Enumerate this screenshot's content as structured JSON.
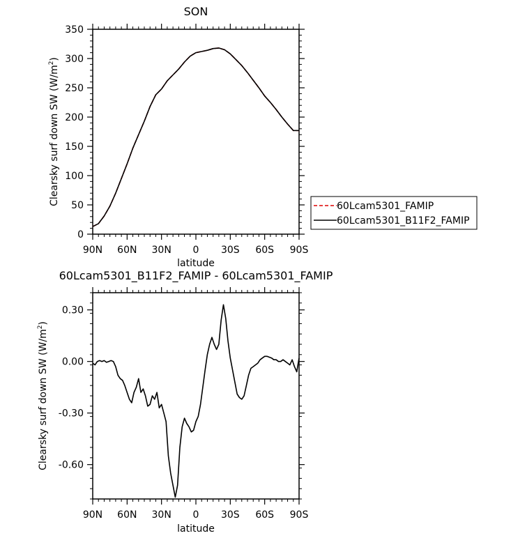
{
  "chart_data": [
    {
      "type": "line",
      "title": "SON",
      "xlabel": "latitude",
      "ylabel_prefix": "Clearsky surf down SW (W/m",
      "ylabel_sup": "2",
      "ylabel_suffix": ")",
      "xlim": [
        -90,
        90
      ],
      "ylim": [
        0,
        350
      ],
      "x_ticks": [
        -90,
        -60,
        -30,
        0,
        30,
        60,
        90
      ],
      "x_tick_labels": [
        "90N",
        "60N",
        "30N",
        "0",
        "30S",
        "60S",
        "90S"
      ],
      "y_ticks": [
        0,
        50,
        100,
        150,
        200,
        250,
        300,
        350
      ],
      "y_tick_labels": [
        "0",
        "50",
        "100",
        "150",
        "200",
        "250",
        "300",
        "350"
      ],
      "legend_position": "right",
      "series": [
        {
          "name": "60Lcam5301_FAMIP",
          "color": "#dd0000",
          "dash": "dashed",
          "x": [
            -90,
            -85,
            -80,
            -75,
            -70,
            -65,
            -60,
            -55,
            -50,
            -45,
            -40,
            -35,
            -30,
            -25,
            -20,
            -15,
            -10,
            -5,
            0,
            5,
            10,
            15,
            20,
            25,
            30,
            35,
            40,
            45,
            50,
            55,
            60,
            65,
            70,
            75,
            80,
            85,
            90
          ],
          "y": [
            13,
            18,
            31,
            48,
            70,
            95,
            120,
            147,
            170,
            193,
            218,
            238,
            248,
            262,
            272,
            282,
            294,
            304,
            310,
            312,
            314,
            317,
            318,
            315,
            308,
            298,
            288,
            276,
            263,
            250,
            236,
            225,
            213,
            200,
            188,
            177,
            177
          ]
        },
        {
          "name": "60Lcam5301_B11F2_FAMIP",
          "color": "#000000",
          "dash": "solid",
          "x": [
            -90,
            -85,
            -80,
            -75,
            -70,
            -65,
            -60,
            -55,
            -50,
            -45,
            -40,
            -35,
            -30,
            -25,
            -20,
            -15,
            -10,
            -5,
            0,
            5,
            10,
            15,
            20,
            25,
            30,
            35,
            40,
            45,
            50,
            55,
            60,
            65,
            70,
            75,
            80,
            85,
            90
          ],
          "y": [
            13,
            18,
            31,
            48,
            70,
            95,
            120,
            147,
            170,
            193,
            218,
            238,
            248,
            262,
            272,
            282,
            294,
            304,
            310,
            312,
            314,
            317,
            318,
            315,
            308,
            298,
            288,
            276,
            263,
            250,
            236,
            225,
            213,
            200,
            188,
            177,
            177
          ]
        }
      ]
    },
    {
      "type": "line",
      "title": "60Lcam5301_B11F2_FAMIP - 60Lcam5301_FAMIP",
      "xlabel": "latitude",
      "ylabel_prefix": "Clearsky surf down SW (W/m",
      "ylabel_sup": "2",
      "ylabel_suffix": ")",
      "xlim": [
        -90,
        90
      ],
      "ylim": [
        -0.8,
        0.4
      ],
      "x_ticks": [
        -90,
        -60,
        -30,
        0,
        30,
        60,
        90
      ],
      "x_tick_labels": [
        "90N",
        "60N",
        "30N",
        "0",
        "30S",
        "60S",
        "90S"
      ],
      "y_ticks": [
        -0.6,
        -0.3,
        0.0,
        0.3
      ],
      "y_tick_labels": [
        "-0.60",
        "-0.30",
        "0.00",
        "0.30"
      ],
      "series": [
        {
          "color": "#000000",
          "dash": "solid",
          "x": [
            -90,
            -88,
            -86,
            -84,
            -82,
            -80,
            -78,
            -76,
            -74,
            -72,
            -70,
            -68,
            -66,
            -64,
            -62,
            -60,
            -58,
            -56,
            -54,
            -52,
            -50,
            -48,
            -46,
            -44,
            -42,
            -40,
            -38,
            -36,
            -34,
            -32,
            -30,
            -28,
            -26,
            -24,
            -22,
            -20,
            -18,
            -16,
            -14,
            -12,
            -10,
            -8,
            -6,
            -4,
            -2,
            0,
            2,
            4,
            6,
            8,
            10,
            12,
            14,
            16,
            18,
            20,
            22,
            24,
            26,
            28,
            30,
            32,
            34,
            36,
            38,
            40,
            42,
            44,
            46,
            48,
            50,
            52,
            54,
            56,
            58,
            60,
            62,
            64,
            66,
            68,
            70,
            72,
            74,
            76,
            78,
            80,
            82,
            84,
            86,
            88,
            90
          ],
          "y": [
            -0.01,
            -0.02,
            0.0,
            0.005,
            0.0,
            0.005,
            -0.005,
            0.0,
            0.005,
            0.0,
            -0.03,
            -0.08,
            -0.1,
            -0.11,
            -0.14,
            -0.18,
            -0.22,
            -0.24,
            -0.18,
            -0.15,
            -0.1,
            -0.18,
            -0.16,
            -0.2,
            -0.26,
            -0.25,
            -0.2,
            -0.22,
            -0.18,
            -0.27,
            -0.25,
            -0.3,
            -0.35,
            -0.55,
            -0.65,
            -0.72,
            -0.79,
            -0.72,
            -0.5,
            -0.38,
            -0.33,
            -0.36,
            -0.38,
            -0.41,
            -0.4,
            -0.35,
            -0.32,
            -0.25,
            -0.15,
            -0.05,
            0.04,
            0.1,
            0.14,
            0.1,
            0.07,
            0.1,
            0.24,
            0.33,
            0.25,
            0.12,
            0.02,
            -0.05,
            -0.12,
            -0.19,
            -0.21,
            -0.22,
            -0.2,
            -0.14,
            -0.08,
            -0.04,
            -0.03,
            -0.02,
            -0.01,
            0.01,
            0.02,
            0.03,
            0.03,
            0.025,
            0.02,
            0.01,
            0.01,
            0.0,
            0.0,
            0.01,
            0.0,
            -0.01,
            -0.02,
            0.01,
            -0.03,
            -0.06,
            0.02
          ]
        }
      ]
    }
  ]
}
